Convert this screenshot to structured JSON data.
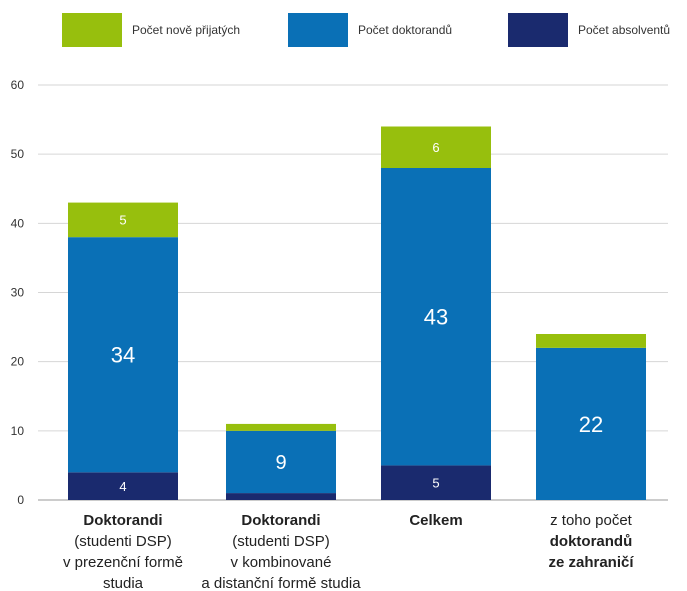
{
  "chart_data": {
    "type": "bar",
    "stacked": true,
    "categories": [
      {
        "lines": [
          {
            "text": "Doktorandi",
            "bold": true
          },
          {
            "text": "(studenti DSP)",
            "bold": false
          },
          {
            "text": "v prezenční formě",
            "bold": false
          },
          {
            "text": "studia",
            "bold": false
          }
        ]
      },
      {
        "lines": [
          {
            "text": "Doktorandi",
            "bold": true
          },
          {
            "text": "(studenti DSP)",
            "bold": false
          },
          {
            "text": "v kombinované",
            "bold": false
          },
          {
            "text": "a distanční formě studia",
            "bold": false
          }
        ]
      },
      {
        "lines": [
          {
            "text": "Celkem",
            "bold": true
          }
        ]
      },
      {
        "lines": [
          {
            "text": "z toho počet",
            "bold": false
          },
          {
            "text": "doktorandů",
            "bold": true
          },
          {
            "text": "ze zahraničí",
            "bold": true
          }
        ]
      }
    ],
    "series": [
      {
        "name": "Počet absolventů",
        "color": "#1a2a6e",
        "values": [
          4,
          1,
          5,
          0
        ],
        "labels": [
          "4",
          "",
          "5",
          ""
        ]
      },
      {
        "name": "Počet doktorandů",
        "color": "#0a70b6",
        "values": [
          34,
          9,
          43,
          22
        ],
        "labels": [
          "34",
          "9",
          "43",
          "22"
        ]
      },
      {
        "name": "Počet nově přijatých",
        "color": "#97bf0d",
        "values": [
          5,
          1,
          6,
          2
        ],
        "labels": [
          "5",
          "",
          "6",
          ""
        ]
      }
    ],
    "legend_order": [
      2,
      1,
      0
    ],
    "legend_position": "top",
    "yticks": [
      0,
      10,
      20,
      30,
      40,
      50,
      60
    ],
    "ylim": [
      0,
      60
    ],
    "grid": true
  }
}
